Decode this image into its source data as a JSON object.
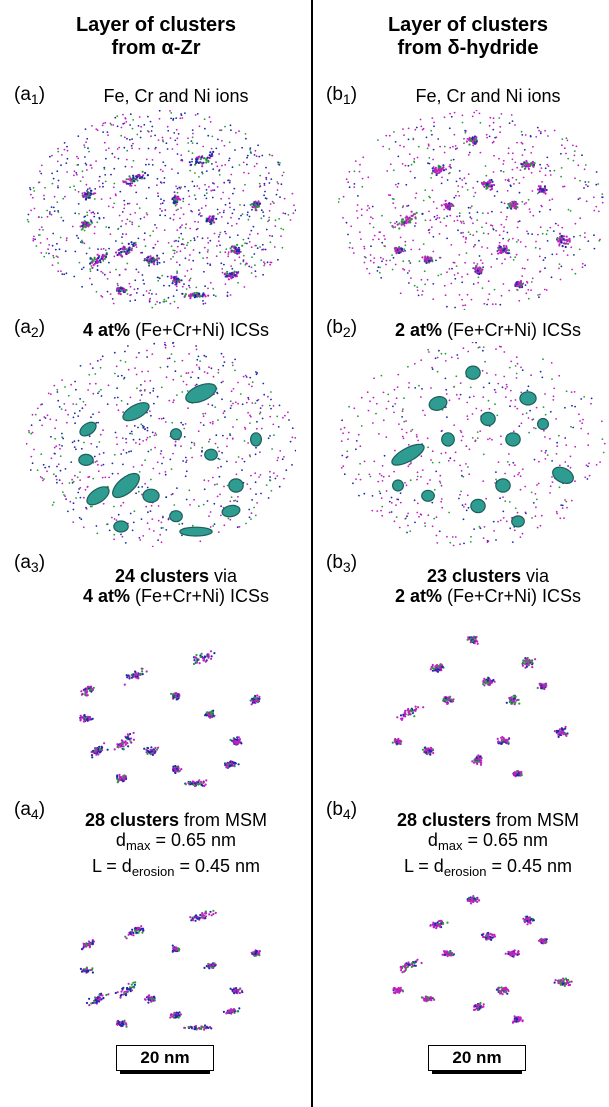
{
  "columns": [
    {
      "id": "a",
      "title_line1": "Layer of clusters",
      "title_line2": "from α-Zr",
      "panels": [
        {
          "tag_letter": "(a",
          "tag_sub": "1",
          "tag_close": ")",
          "caption": "Fe, Cr and Ni ions"
        },
        {
          "tag_letter": "(a",
          "tag_sub": "2",
          "tag_close": ")",
          "caption_bold": "4 at%",
          "caption_rest": " (Fe+Cr+Ni) ICSs"
        },
        {
          "tag_letter": "(a",
          "tag_sub": "3",
          "tag_close": ")",
          "caption_bold": "24 clusters",
          "caption_rest": " via",
          "caption2_bold": "4 at%",
          "caption2_rest": " (Fe+Cr+Ni) ICSs"
        },
        {
          "tag_letter": "(a",
          "tag_sub": "4",
          "tag_close": ")",
          "caption_bold": "28 clusters",
          "caption_rest": " from MSM",
          "dmax_prefix": "d",
          "dmax_sub": "max",
          "dmax_value": " = 0.65 nm",
          "derosion_prefix": "L = d",
          "derosion_sub": "erosion",
          "derosion_value": " = 0.45 nm"
        }
      ],
      "scale_label": "20 nm"
    },
    {
      "id": "b",
      "title_line1": "Layer of clusters",
      "title_line2": "from δ-hydride",
      "panels": [
        {
          "tag_letter": "(b",
          "tag_sub": "1",
          "tag_close": ")",
          "caption": "Fe, Cr and Ni ions"
        },
        {
          "tag_letter": "(b",
          "tag_sub": "2",
          "tag_close": ")",
          "caption_bold": "2 at%",
          "caption_rest": " (Fe+Cr+Ni) ICSs"
        },
        {
          "tag_letter": "(b",
          "tag_sub": "3",
          "tag_close": ")",
          "caption_bold": "23 clusters",
          "caption_rest": " via",
          "caption2_bold": "2 at%",
          "caption2_rest": " (Fe+Cr+Ni) ICSs"
        },
        {
          "tag_letter": "(b",
          "tag_sub": "4",
          "tag_close": ")",
          "caption_bold": "28 clusters",
          "caption_rest": " from MSM",
          "dmax_prefix": "d",
          "dmax_sub": "max",
          "dmax_value": " = 0.65 nm",
          "derosion_prefix": "L = d",
          "derosion_sub": "erosion",
          "derosion_value": " = 0.45 nm"
        }
      ],
      "scale_label": "20 nm"
    }
  ],
  "colors": {
    "ion_blue": "#1a2aa8",
    "ion_magenta": "#c21fc2",
    "ion_green": "#2a9a3a",
    "isosurface_teal": "#2f9c92",
    "isosurface_dark": "#1c5f5a"
  },
  "icons": {
    "atom_map": "point-cloud",
    "isosurface": "teal-blob"
  }
}
